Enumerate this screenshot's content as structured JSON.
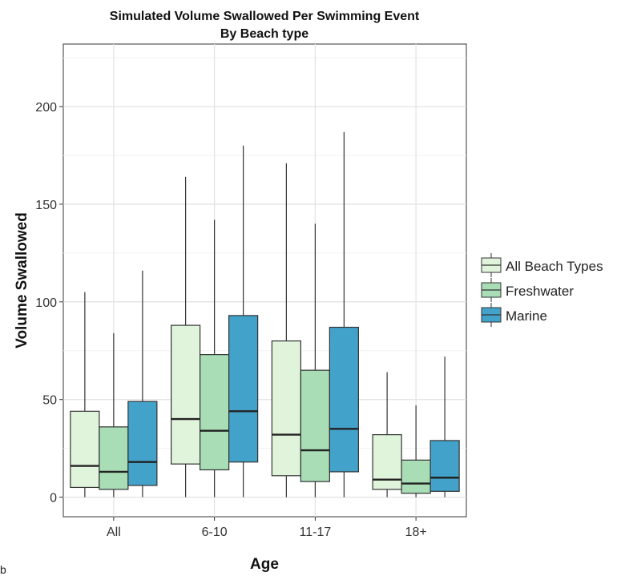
{
  "chart_data": {
    "type": "boxplot",
    "title": "Simulated Volume Swallowed Per Swimming Event",
    "subtitle": "By Beach type",
    "xlabel": "Age",
    "ylabel": "Volume Swallowed",
    "ylim": [
      -10,
      232
    ],
    "yticks": [
      0,
      50,
      100,
      150,
      200
    ],
    "grid": true,
    "legend_position": "right",
    "categories": [
      "All",
      "6-10",
      "11-17",
      "18+"
    ],
    "series": [
      {
        "name": "All Beach Types",
        "color": "#e0f3db",
        "boxes": [
          {
            "min": 0,
            "q1": 5,
            "median": 16,
            "q3": 44,
            "max": 105
          },
          {
            "min": 0,
            "q1": 17,
            "median": 40,
            "q3": 88,
            "max": 164
          },
          {
            "min": 0,
            "q1": 11,
            "median": 32,
            "q3": 80,
            "max": 171
          },
          {
            "min": 0,
            "q1": 4,
            "median": 9,
            "q3": 32,
            "max": 64
          }
        ]
      },
      {
        "name": "Freshwater",
        "color": "#a8ddb5",
        "boxes": [
          {
            "min": 0,
            "q1": 4,
            "median": 13,
            "q3": 36,
            "max": 84
          },
          {
            "min": 0,
            "q1": 14,
            "median": 34,
            "q3": 73,
            "max": 142
          },
          {
            "min": 0,
            "q1": 8,
            "median": 24,
            "q3": 65,
            "max": 140
          },
          {
            "min": 0,
            "q1": 2,
            "median": 7,
            "q3": 19,
            "max": 47
          }
        ]
      },
      {
        "name": "Marine",
        "color": "#43a2ca",
        "boxes": [
          {
            "min": 0,
            "q1": 6,
            "median": 18,
            "q3": 49,
            "max": 116
          },
          {
            "min": 0,
            "q1": 18,
            "median": 44,
            "q3": 93,
            "max": 180
          },
          {
            "min": 0,
            "q1": 13,
            "median": 35,
            "q3": 87,
            "max": 187
          },
          {
            "min": 0,
            "q1": 3,
            "median": 10,
            "q3": 29,
            "max": 72
          }
        ]
      }
    ]
  },
  "stray_text": "b"
}
